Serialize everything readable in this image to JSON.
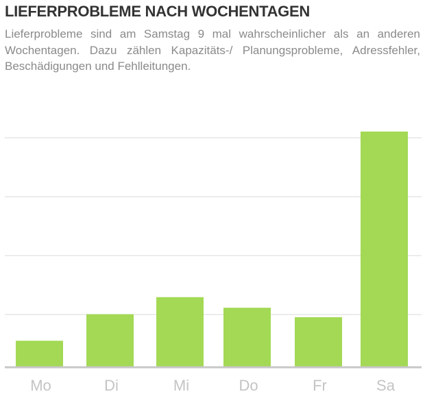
{
  "chart_data": {
    "type": "bar",
    "title": "LIEFERPROBLEME NACH WOCHENTAGEN",
    "subtitle": "Lieferprobleme sind am Samstag 9 mal wahrscheinlicher als an anderen Wochentagen. Dazu zählen Kapazitäts-/ Planungsprobleme, Adressfehler, Beschädigungen und Fehlleitungen.",
    "xlabel": "",
    "ylabel": "",
    "categories": [
      "Mo",
      "Di",
      "Mi",
      "Do",
      "Fr",
      "Sa"
    ],
    "values": [
      0.45,
      0.9,
      1.19,
      1.01,
      0.85,
      4.0
    ],
    "ylim": [
      0,
      4.2
    ],
    "y_ticks_labeled": false,
    "grid": true,
    "legend": "none",
    "bar_color": "#a3d955",
    "grid_color": "#e6e6e6",
    "axis_color": "#c8c8c8"
  }
}
